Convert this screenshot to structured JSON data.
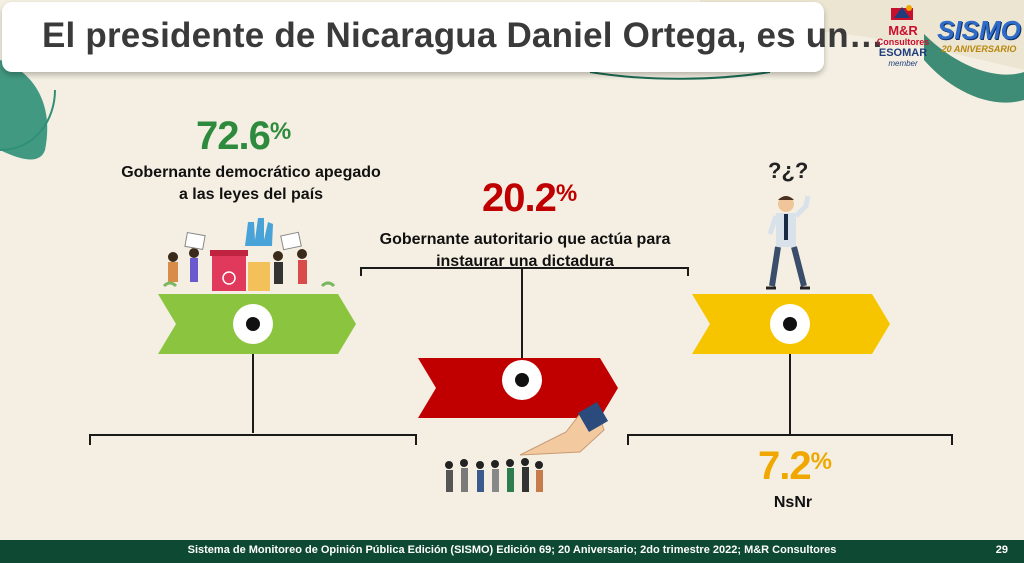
{
  "title": "El presidente de Nicaragua Daniel Ortega, es un…",
  "logos": {
    "mr_brand": "M&R",
    "mr_brand2": "Consultores",
    "esomar": "ESOMAR",
    "member": "member",
    "sismo": "SISMO",
    "sismo_sub": "20 ANIVERSARIO"
  },
  "colors": {
    "green": "#8bc53f",
    "red": "#c00000",
    "yellow": "#f7c500",
    "pct_green": "#2e8b3e",
    "pct_red": "#c00000",
    "pct_yellow": "#f0a800",
    "footer": "#0e4a33",
    "background": "#f4efe2"
  },
  "chart_data": {
    "type": "bar",
    "title": "El presidente de Nicaragua Daniel Ortega, es un…",
    "categories": [
      "Gobernante democrático apegado a las leyes del país",
      "Gobernante autoritario que actúa para instaurar una dictadura",
      "NsNr"
    ],
    "values": [
      72.6,
      20.2,
      7.2
    ],
    "unit": "%"
  },
  "items": [
    {
      "value": "72.6",
      "unit": "%",
      "label_line1": "Gobernante democrático apegado",
      "label_line2": "a las leyes del país",
      "icon": "voting-crowd-icon"
    },
    {
      "value": "20.2",
      "unit": "%",
      "label_line1": "Gobernante autoritario que actúa para",
      "label_line2": "instaurar una dictadura",
      "icon": "pointing-hand-queue-icon"
    },
    {
      "value": "7.2",
      "unit": "%",
      "label_line1": "NsNr",
      "label_line2": "",
      "icon": "confused-man-icon"
    }
  ],
  "question_marks": "?¿?",
  "footer": {
    "text": "Sistema de Monitoreo de Opinión Pública Edición (SISMO) Edición 69; 20 Aniversario; 2do trimestre 2022; M&R Consultores",
    "page": "29"
  }
}
